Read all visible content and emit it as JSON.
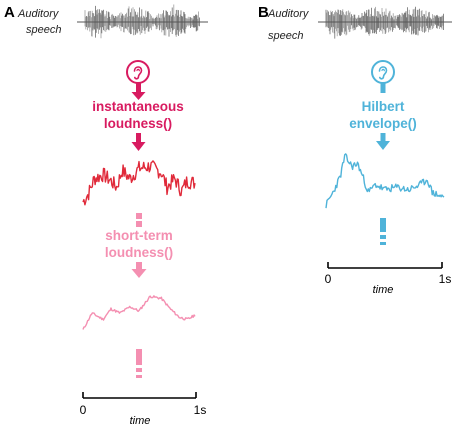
{
  "panel_a": {
    "letter": "A",
    "input_label_line1": "Auditory",
    "input_label_line2": "speech",
    "ear_icon": "ear-icon",
    "stage1_line1": "instantaneous",
    "stage1_line2": "loudness()",
    "stage1_color": "#d81b60",
    "wave1_color": "#e02a3a",
    "stage2_line1": "short-term",
    "stage2_line2": "loudness()",
    "stage2_color": "#f48fb1",
    "axis": {
      "start": "0",
      "end": "1s",
      "label": "time"
    }
  },
  "panel_b": {
    "letter": "B",
    "input_label_line1": "Auditory",
    "input_label_line2": "speech",
    "ear_icon": "ear-icon",
    "stage1_line1": "Hilbert",
    "stage1_line2": "envelope()",
    "stage1_color": "#4fb3d9",
    "axis": {
      "start": "0",
      "end": "1s",
      "label": "time"
    }
  },
  "speech_waveform_color": "#9e9e9e"
}
